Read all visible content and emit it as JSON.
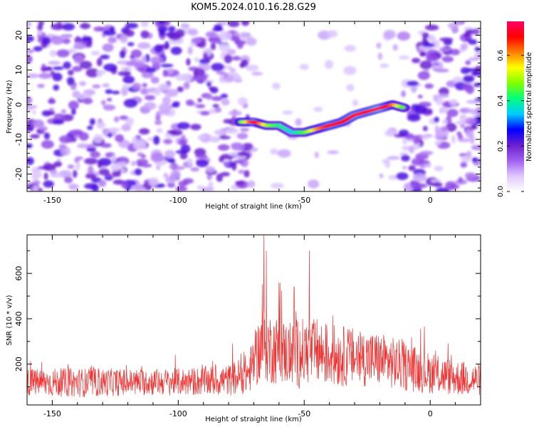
{
  "chart_data": [
    {
      "type": "heatmap",
      "title": "KOM5.2024.010.16.28.G29",
      "xlabel": "Height of straight line (km)",
      "ylabel": "Frequency (Hz)",
      "xlim": [
        -160,
        20
      ],
      "ylim": [
        -25,
        24
      ],
      "x_ticks": [
        -150,
        -100,
        -50,
        0
      ],
      "y_ticks": [
        -20,
        -10,
        0,
        10,
        20
      ],
      "colorbar": {
        "label": "Normalized spectral amplitude",
        "range": [
          0,
          0.75
        ],
        "ticks": [
          0.0,
          0.2,
          0.4,
          0.6
        ],
        "colors": [
          "#ffffff",
          "#e0c8ff",
          "#a060f0",
          "#6a1fd0",
          "#0000ff",
          "#00ccff",
          "#00ff80",
          "#80ff00",
          "#ffff00",
          "#ff8000",
          "#ff0000",
          "#ff0066"
        ]
      },
      "feature_track": {
        "x": [
          -75,
          -70,
          -65,
          -60,
          -55,
          -50,
          -45,
          -40,
          -35,
          -30,
          -25,
          -20,
          -15,
          -10
        ],
        "y": [
          -5,
          -5,
          -6,
          -6,
          -8,
          -8,
          -7,
          -6,
          -5,
          -3,
          -2,
          -1,
          0,
          -1
        ],
        "amplitude": [
          0.45,
          0.72,
          0.5,
          0.4,
          0.35,
          0.45,
          0.6,
          0.7,
          0.68,
          0.72,
          0.7,
          0.75,
          0.62,
          0.4
        ]
      },
      "background_noise": {
        "regions": [
          {
            "x": [
              -160,
              -72
            ],
            "level": "high"
          },
          {
            "x": [
              -72,
              -12
            ],
            "level": "low"
          },
          {
            "x": [
              -12,
              20
            ],
            "level": "high"
          }
        ]
      }
    },
    {
      "type": "line",
      "xlabel": "Height of straight line (km)",
      "ylabel": "SNR (10 * v/v)",
      "xlim": [
        -160,
        20
      ],
      "ylim": [
        20,
        770
      ],
      "x_ticks": [
        -150,
        -100,
        -50,
        0
      ],
      "y_ticks": [
        200,
        400,
        600
      ],
      "color": "#ee3333",
      "envelope": {
        "x": [
          -160,
          -140,
          -120,
          -100,
          -90,
          -80,
          -72,
          -68,
          -66,
          -64,
          -60,
          -55,
          -52,
          -48,
          -45,
          -40,
          -30,
          -20,
          -10,
          0,
          10,
          20
        ],
        "mean": [
          120,
          118,
          120,
          122,
          125,
          130,
          160,
          260,
          300,
          270,
          260,
          240,
          250,
          250,
          255,
          240,
          230,
          220,
          190,
          160,
          140,
          130
        ],
        "spread": [
          60,
          65,
          60,
          60,
          65,
          70,
          90,
          150,
          170,
          160,
          150,
          140,
          160,
          140,
          150,
          140,
          130,
          120,
          110,
          90,
          80,
          70
        ]
      },
      "peaks": [
        {
          "x": -66,
          "y": 770
        },
        {
          "x": -65,
          "y": 700
        },
        {
          "x": -48,
          "y": 700
        },
        {
          "x": -60,
          "y": 560
        },
        {
          "x": -54,
          "y": 540
        }
      ]
    }
  ]
}
